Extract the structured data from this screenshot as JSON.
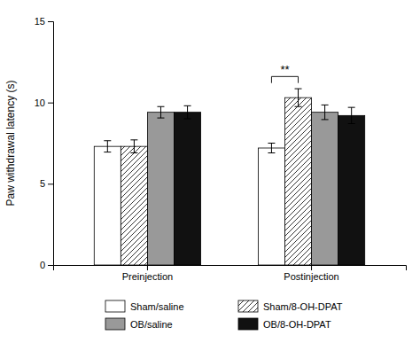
{
  "chart_data": {
    "type": "bar",
    "categories": [
      "Preinjection",
      "Postinjection"
    ],
    "series": [
      {
        "name": "Sham/saline",
        "color": "#ffffff",
        "values": [
          7.3,
          7.2
        ],
        "errors": [
          0.35,
          0.3
        ]
      },
      {
        "name": "Sham/8-OH-DPAT",
        "color": "#ffffff",
        "values": [
          7.3,
          10.3
        ],
        "errors": [
          0.4,
          0.55
        ]
      },
      {
        "name": "OB/saline",
        "color": "#999999",
        "values": [
          9.4,
          9.4
        ],
        "errors": [
          0.35,
          0.45
        ]
      },
      {
        "name": "OB/8-OH-DPAT",
        "color": "#111111",
        "values": [
          9.4,
          9.2
        ],
        "errors": [
          0.4,
          0.5
        ]
      }
    ],
    "ylabel": "Paw withdrawal latency (s)",
    "ylim": [
      0,
      15
    ],
    "yticks": [
      0,
      5,
      10,
      15
    ],
    "grid": false,
    "legend": "bottom",
    "annotations": [
      {
        "text": "**",
        "x": "Postinjection",
        "between": [
          "Sham/saline",
          "Sham/8-OH-DPAT"
        ],
        "y": 11.2,
        "y_top": 11.6
      }
    ]
  }
}
